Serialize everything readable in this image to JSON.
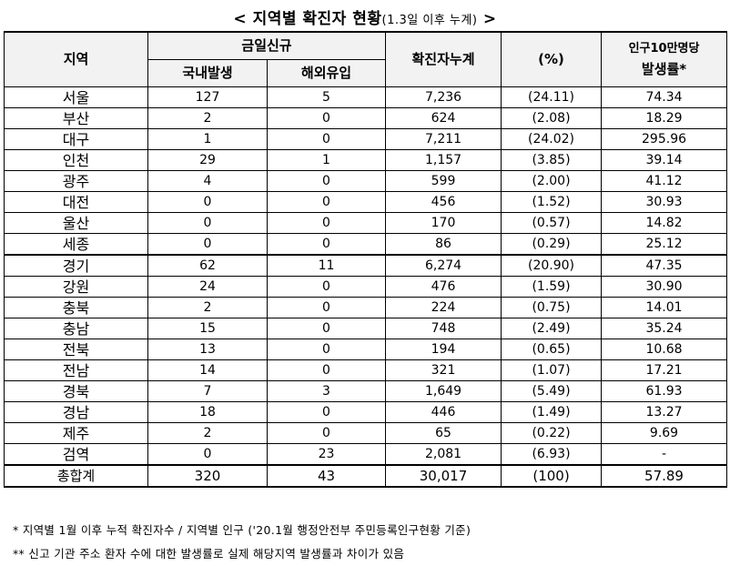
{
  "title": {
    "main": "< 지역별 확진자 현황",
    "sub": "(1.3일 이후 누계)",
    "end": " >"
  },
  "headers": {
    "region": "지역",
    "today_new": "금일신규",
    "domestic": "국내발생",
    "overseas": "해외유입",
    "cumulative": "확진자누계",
    "percent": "(%)",
    "per100k_line1": "인구10만명당",
    "per100k_line2": "발생률*"
  },
  "rows": [
    {
      "region": "서울",
      "domestic": "127",
      "overseas": "5",
      "cumulative": "7,236",
      "percent": "(24.11)",
      "rate": "74.34"
    },
    {
      "region": "부산",
      "domestic": "2",
      "overseas": "0",
      "cumulative": "624",
      "percent": "(2.08)",
      "rate": "18.29"
    },
    {
      "region": "대구",
      "domestic": "1",
      "overseas": "0",
      "cumulative": "7,211",
      "percent": "(24.02)",
      "rate": "295.96"
    },
    {
      "region": "인천",
      "domestic": "29",
      "overseas": "1",
      "cumulative": "1,157",
      "percent": "(3.85)",
      "rate": "39.14"
    },
    {
      "region": "광주",
      "domestic": "4",
      "overseas": "0",
      "cumulative": "599",
      "percent": "(2.00)",
      "rate": "41.12"
    },
    {
      "region": "대전",
      "domestic": "0",
      "overseas": "0",
      "cumulative": "456",
      "percent": "(1.52)",
      "rate": "30.93"
    },
    {
      "region": "울산",
      "domestic": "0",
      "overseas": "0",
      "cumulative": "170",
      "percent": "(0.57)",
      "rate": "14.82"
    },
    {
      "region": "세종",
      "domestic": "0",
      "overseas": "0",
      "cumulative": "86",
      "percent": "(0.29)",
      "rate": "25.12"
    },
    {
      "region": "경기",
      "domestic": "62",
      "overseas": "11",
      "cumulative": "6,274",
      "percent": "(20.90)",
      "rate": "47.35"
    },
    {
      "region": "강원",
      "domestic": "24",
      "overseas": "0",
      "cumulative": "476",
      "percent": "(1.59)",
      "rate": "30.90"
    },
    {
      "region": "충북",
      "domestic": "2",
      "overseas": "0",
      "cumulative": "224",
      "percent": "(0.75)",
      "rate": "14.01"
    },
    {
      "region": "충남",
      "domestic": "15",
      "overseas": "0",
      "cumulative": "748",
      "percent": "(2.49)",
      "rate": "35.24"
    },
    {
      "region": "전북",
      "domestic": "13",
      "overseas": "0",
      "cumulative": "194",
      "percent": "(0.65)",
      "rate": "10.68"
    },
    {
      "region": "전남",
      "domestic": "14",
      "overseas": "0",
      "cumulative": "321",
      "percent": "(1.07)",
      "rate": "17.21"
    },
    {
      "region": "경북",
      "domestic": "7",
      "overseas": "3",
      "cumulative": "1,649",
      "percent": "(5.49)",
      "rate": "61.93"
    },
    {
      "region": "경남",
      "domestic": "18",
      "overseas": "0",
      "cumulative": "446",
      "percent": "(1.49)",
      "rate": "13.27"
    },
    {
      "region": "제주",
      "domestic": "2",
      "overseas": "0",
      "cumulative": "65",
      "percent": "(0.22)",
      "rate": "9.69"
    },
    {
      "region": "검역",
      "domestic": "0",
      "overseas": "23",
      "cumulative": "2,081",
      "percent": "(6.93)",
      "rate": "-"
    },
    {
      "region": "총합계",
      "domestic": "320",
      "overseas": "43",
      "cumulative": "30,017",
      "percent": "(100)",
      "rate": "57.89"
    }
  ],
  "notes": [
    "* 지역별 1월 이후 누적 확진자수 / 지역별 인구 ('20.1월 행정안전부 주민등록인구현황 기준)",
    "** 신고 기관 주소 환자 수에 대한 발생률로 실제 해당지역 발생률과 차이가 있음"
  ]
}
